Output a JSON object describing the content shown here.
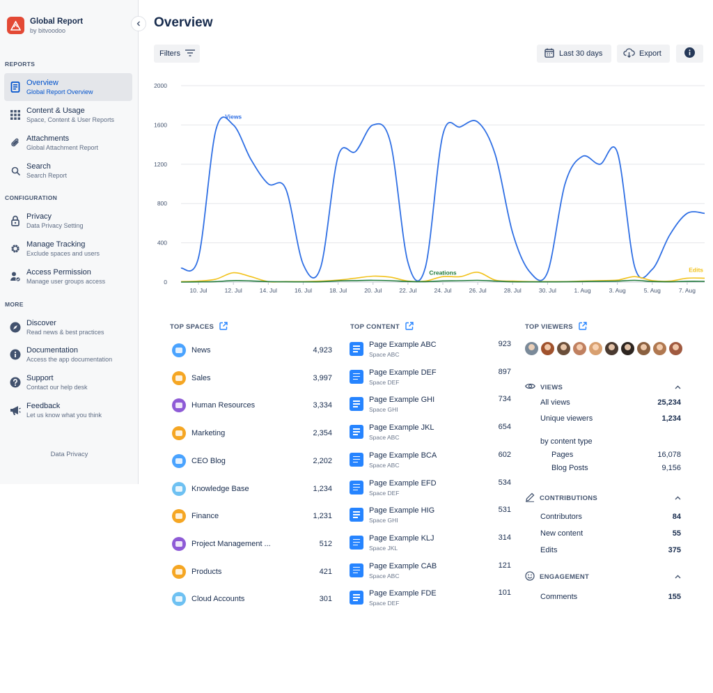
{
  "app": {
    "title": "Global Report",
    "subtitle": "by bitvoodoo"
  },
  "sidebar": {
    "sections": {
      "reports": "REPORTS",
      "configuration": "CONFIGURATION",
      "more": "MORE"
    },
    "items": [
      {
        "label": "Overview",
        "desc": "Global Report Overview",
        "icon": "document-icon",
        "active": true
      },
      {
        "label": "Content & Usage",
        "desc": "Space, Content & User Reports",
        "icon": "grid-icon"
      },
      {
        "label": "Attachments",
        "desc": "Global Attachment Report",
        "icon": "paperclip-icon"
      },
      {
        "label": "Search",
        "desc": "Search Report",
        "icon": "search-icon"
      },
      {
        "label": "Privacy",
        "desc": "Data Privacy Setting",
        "icon": "lock-icon"
      },
      {
        "label": "Manage Tracking",
        "desc": "Exclude spaces and users",
        "icon": "gear-icon"
      },
      {
        "label": "Access Permission",
        "desc": "Manage user groups access",
        "icon": "user-permission-icon"
      },
      {
        "label": "Discover",
        "desc": "Read news & best practices",
        "icon": "compass-icon"
      },
      {
        "label": "Documentation",
        "desc": "Access the app documentation",
        "icon": "info-icon"
      },
      {
        "label": "Support",
        "desc": "Contact our help desk",
        "icon": "question-icon"
      },
      {
        "label": "Feedback",
        "desc": "Let us know what you think",
        "icon": "megaphone-icon"
      }
    ],
    "privacy_link": "Data Privacy"
  },
  "header": {
    "title": "Overview",
    "filters_label": "Filters",
    "date_range_label": "Last 30 days",
    "export_label": "Export"
  },
  "chart_data": {
    "type": "line",
    "x": [
      "9. Jul",
      "10. Jul",
      "11. Jul",
      "12. Jul",
      "13. Jul",
      "14. Jul",
      "15. Jul",
      "16. Jul",
      "17. Jul",
      "18. Jul",
      "19. Jul",
      "20. Jul",
      "21. Jul",
      "22. Jul",
      "23. Jul",
      "24. Jul",
      "25. Jul",
      "26. Jul",
      "27. Jul",
      "28. Jul",
      "29. Jul",
      "30. Jul",
      "31. Jul",
      "1. Aug",
      "2. Aug",
      "3. Aug",
      "4. Aug",
      "5. Aug",
      "6. Aug",
      "7. Aug",
      "8. Aug"
    ],
    "x_tick_labels": [
      "10. Jul",
      "12. Jul",
      "14. Jul",
      "16. Jul",
      "18. Jul",
      "20. Jul",
      "22. Jul",
      "24. Jul",
      "26. Jul",
      "28. Jul",
      "30. Jul",
      "1. Aug",
      "3. Aug",
      "5. Aug",
      "7. Aug"
    ],
    "ylim": [
      0,
      2000
    ],
    "y_ticks": [
      0,
      400,
      800,
      1200,
      1600,
      2000
    ],
    "grid": true,
    "series": [
      {
        "name": "Views",
        "color": "#2f6fe4",
        "values": [
          140,
          250,
          1550,
          1600,
          1250,
          1000,
          950,
          180,
          150,
          1280,
          1330,
          1600,
          1420,
          200,
          150,
          1500,
          1580,
          1630,
          1300,
          500,
          100,
          100,
          1000,
          1280,
          1200,
          1320,
          150,
          130,
          480,
          700,
          700
        ]
      },
      {
        "name": "Edits",
        "color": "#f2c21b",
        "values": [
          5,
          10,
          30,
          95,
          55,
          5,
          5,
          5,
          10,
          20,
          40,
          60,
          50,
          10,
          10,
          55,
          55,
          100,
          20,
          10,
          5,
          5,
          5,
          10,
          15,
          20,
          55,
          15,
          10,
          40,
          40
        ]
      },
      {
        "name": "Creations",
        "color": "#1f7a3a",
        "values": [
          0,
          2,
          5,
          15,
          12,
          5,
          3,
          2,
          3,
          12,
          15,
          18,
          14,
          6,
          4,
          12,
          14,
          18,
          10,
          3,
          2,
          2,
          3,
          5,
          8,
          10,
          18,
          6,
          3,
          8,
          8
        ]
      }
    ]
  },
  "top_spaces": {
    "title": "TOP SPACES",
    "items": [
      {
        "name": "News",
        "value": "4,923",
        "color": "#4aa3ff"
      },
      {
        "name": "Sales",
        "value": "3,997",
        "color": "#f5a623"
      },
      {
        "name": "Human Resources",
        "value": "3,334",
        "color": "#8e5bd6"
      },
      {
        "name": "Marketing",
        "value": "2,354",
        "color": "#f5a623"
      },
      {
        "name": "CEO Blog",
        "value": "2,202",
        "color": "#4aa3ff"
      },
      {
        "name": "Knowledge Base",
        "value": "1,234",
        "color": "#6ec1f2"
      },
      {
        "name": "Finance",
        "value": "1,231",
        "color": "#f5a623"
      },
      {
        "name": "Project Management ...",
        "value": "512",
        "color": "#8e5bd6"
      },
      {
        "name": "Products",
        "value": "421",
        "color": "#f5a623"
      },
      {
        "name": "Cloud Accounts",
        "value": "301",
        "color": "#6ec1f2"
      }
    ]
  },
  "top_content": {
    "title": "TOP CONTENT",
    "items": [
      {
        "title": "Page Example ABC",
        "space": "Space ABC",
        "value": "923"
      },
      {
        "title": "Page Example DEF",
        "space": "Space DEF",
        "value": "897"
      },
      {
        "title": "Page Example GHI",
        "space": "Space GHI",
        "value": "734"
      },
      {
        "title": "Page Example JKL",
        "space": "Space ABC",
        "value": "654"
      },
      {
        "title": "Page Example BCA",
        "space": "Space ABC",
        "value": "602"
      },
      {
        "title": "Page Example EFD",
        "space": "Space DEF",
        "value": "534"
      },
      {
        "title": "Page Example HIG",
        "space": "Space GHI",
        "value": "531"
      },
      {
        "title": "Page Example KLJ",
        "space": "Space JKL",
        "value": "314"
      },
      {
        "title": "Page Example CAB",
        "space": "Space ABC",
        "value": "121"
      },
      {
        "title": "Page Example FDE",
        "space": "Space DEF",
        "value": "101"
      }
    ]
  },
  "top_viewers": {
    "title": "TOP VIEWERS",
    "avatar_colors": [
      "#7a8a99",
      "#a0522d",
      "#6b4f3a",
      "#c08060",
      "#d8a070",
      "#4a3a30",
      "#2d2520",
      "#8a6040",
      "#b07850",
      "#a05a40"
    ]
  },
  "stats": {
    "views": {
      "title": "VIEWS",
      "all_views_label": "All views",
      "all_views": "25,234",
      "unique_label": "Unique viewers",
      "unique": "1,234",
      "by_type_label": "by content type",
      "pages_label": "Pages",
      "pages": "16,078",
      "blog_label": "Blog Posts",
      "blog": "9,156"
    },
    "contributions": {
      "title": "CONTRIBUTIONS",
      "contributors_label": "Contributors",
      "contributors": "84",
      "new_content_label": "New content",
      "new_content": "55",
      "edits_label": "Edits",
      "edits": "375"
    },
    "engagement": {
      "title": "ENGAGEMENT",
      "comments_label": "Comments",
      "comments": "155"
    }
  }
}
